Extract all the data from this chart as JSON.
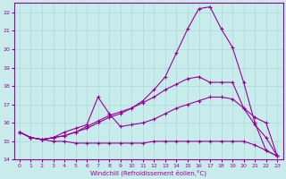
{
  "xlabel": "Windchill (Refroidissement éolien,°C)",
  "background_color": "#c8ecec",
  "grid_color": "#aad8d8",
  "line_color": "#990099",
  "xlim": [
    -0.5,
    23.5
  ],
  "ylim": [
    14,
    22.5
  ],
  "yticks": [
    14,
    15,
    16,
    17,
    18,
    19,
    20,
    21,
    22
  ],
  "xticks": [
    0,
    1,
    2,
    3,
    4,
    5,
    6,
    7,
    8,
    9,
    10,
    11,
    12,
    13,
    14,
    15,
    16,
    17,
    18,
    19,
    20,
    21,
    22,
    23
  ],
  "series_top_x": [
    0,
    1,
    2,
    3,
    4,
    5,
    6,
    7,
    8,
    9,
    10,
    11,
    12,
    13,
    14,
    15,
    16,
    17,
    18,
    19,
    20,
    21,
    22,
    23
  ],
  "series_top_y": [
    15.5,
    15.2,
    15.1,
    15.2,
    15.3,
    15.5,
    15.7,
    16.0,
    16.3,
    16.5,
    16.8,
    17.2,
    17.8,
    18.5,
    19.8,
    21.1,
    22.2,
    22.3,
    21.1,
    20.1,
    18.2,
    16.0,
    14.5,
    14.2
  ],
  "series_mid1_x": [
    0,
    1,
    2,
    3,
    4,
    5,
    6,
    7,
    8,
    9,
    10,
    11,
    12,
    13,
    14,
    15,
    16,
    17,
    18,
    19,
    20,
    21,
    22,
    23
  ],
  "series_mid1_y": [
    15.5,
    15.2,
    15.1,
    15.2,
    15.3,
    15.5,
    15.8,
    16.1,
    16.4,
    16.6,
    16.8,
    17.1,
    17.4,
    17.8,
    18.1,
    18.4,
    18.5,
    18.2,
    18.2,
    18.2,
    16.8,
    15.9,
    15.2,
    14.2
  ],
  "series_zigzag_x": [
    0,
    1,
    2,
    3,
    4,
    5,
    6,
    7,
    8,
    9,
    10,
    11,
    12,
    13,
    14,
    15,
    16,
    17,
    18,
    19,
    20,
    21,
    22,
    23
  ],
  "series_zigzag_y": [
    15.5,
    15.2,
    15.1,
    15.2,
    15.5,
    15.7,
    15.9,
    17.4,
    16.5,
    15.8,
    15.9,
    16.0,
    16.2,
    16.5,
    16.8,
    17.0,
    17.2,
    17.4,
    17.4,
    17.3,
    16.8,
    16.3,
    16.0,
    14.2
  ],
  "series_bot_x": [
    0,
    1,
    2,
    3,
    4,
    5,
    6,
    7,
    8,
    9,
    10,
    11,
    12,
    13,
    14,
    15,
    16,
    17,
    18,
    19,
    20,
    21,
    22,
    23
  ],
  "series_bot_y": [
    15.5,
    15.2,
    15.1,
    15.0,
    15.0,
    14.9,
    14.9,
    14.9,
    14.9,
    14.9,
    14.9,
    14.9,
    15.0,
    15.0,
    15.0,
    15.0,
    15.0,
    15.0,
    15.0,
    15.0,
    15.0,
    14.8,
    14.5,
    14.2
  ]
}
